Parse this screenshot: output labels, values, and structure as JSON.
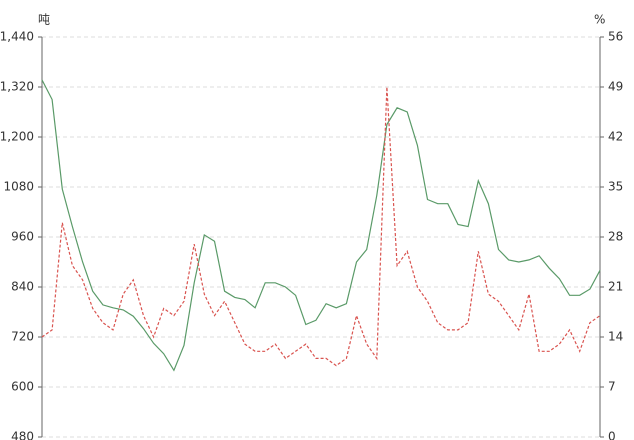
{
  "chart_data": {
    "type": "line",
    "y_unit": "吨",
    "y2_unit": "%",
    "ylim": [
      480,
      1440
    ],
    "yticks": [
      480,
      600,
      720,
      840,
      960,
      1080,
      {
        "value": 1200,
        "label": "1,200"
      },
      {
        "value": 1320,
        "label": "1,320"
      },
      {
        "value": 1440,
        "label": "1,440"
      }
    ],
    "y2lim": [
      0,
      56
    ],
    "y2ticks": [
      0,
      7,
      14,
      21,
      28,
      35,
      42,
      49,
      56
    ],
    "grid": true,
    "series": [
      {
        "color": "#5a9a68",
        "dash": false,
        "values": [
          1337,
          1290,
          1075,
          985,
          900,
          830,
          797,
          790,
          785,
          770,
          740,
          705,
          680,
          640,
          700,
          850,
          965,
          950,
          830,
          815,
          810,
          790,
          850,
          850,
          840,
          820,
          750,
          760,
          800,
          790,
          800,
          900,
          930,
          1060,
          1230,
          1270,
          1260,
          1180,
          1050,
          1040,
          1040,
          990,
          985,
          1095,
          1040,
          930,
          905,
          900,
          905,
          915,
          885,
          860,
          820,
          820,
          835,
          880
        ]
      },
      {
        "color": "#d9534f",
        "dash": true,
        "axis": "y2",
        "values": [
          14,
          15,
          30,
          24,
          22,
          18,
          16,
          15,
          20,
          22,
          17,
          14,
          18,
          17,
          19,
          27,
          20,
          17,
          19,
          16,
          13,
          12,
          12,
          13,
          11,
          12,
          13,
          11,
          11,
          10,
          11,
          17,
          13,
          11,
          49,
          24,
          26,
          21,
          19,
          16,
          15,
          15,
          16,
          26,
          20,
          19,
          17,
          15,
          20,
          12,
          12,
          13,
          15,
          12,
          16,
          17
        ]
      }
    ]
  }
}
